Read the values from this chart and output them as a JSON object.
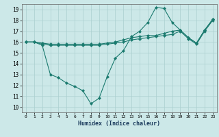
{
  "xlabel": "Humidex (Indice chaleur)",
  "background_color": "#cce8e8",
  "line_color": "#1a7a6e",
  "grid_color": "#aacfcf",
  "xlim": [
    -0.5,
    23.5
  ],
  "ylim": [
    9.5,
    19.5
  ],
  "yticks": [
    10,
    11,
    12,
    13,
    14,
    15,
    16,
    17,
    18,
    19
  ],
  "xticks": [
    0,
    1,
    2,
    3,
    4,
    5,
    6,
    7,
    8,
    9,
    10,
    11,
    12,
    13,
    14,
    15,
    16,
    17,
    18,
    19,
    20,
    21,
    22,
    23
  ],
  "series": [
    {
      "x": [
        0,
        1,
        2,
        3,
        4,
        5,
        6,
        7,
        8,
        9,
        10,
        11,
        12,
        13,
        14,
        15,
        16,
        17,
        18,
        19,
        20,
        21,
        22,
        23
      ],
      "y": [
        16,
        16,
        15.7,
        13.0,
        12.7,
        12.2,
        11.9,
        11.5,
        10.3,
        10.8,
        12.8,
        14.5,
        15.2,
        16.5,
        17.0,
        17.8,
        19.2,
        19.1,
        17.8,
        17.1,
        16.4,
        15.9,
        17.1,
        18.1
      ]
    },
    {
      "x": [
        0,
        1,
        2,
        3,
        4,
        5,
        6,
        7,
        8,
        9,
        10,
        11,
        12,
        13,
        14,
        15,
        16,
        17,
        18,
        19,
        20,
        21,
        22,
        23
      ],
      "y": [
        16,
        16,
        15.9,
        15.8,
        15.8,
        15.8,
        15.8,
        15.8,
        15.8,
        15.8,
        15.9,
        16.0,
        16.2,
        16.4,
        16.5,
        16.6,
        16.6,
        16.8,
        17.0,
        17.1,
        16.4,
        15.9,
        17.1,
        18.1
      ]
    },
    {
      "x": [
        0,
        1,
        2,
        3,
        4,
        5,
        6,
        7,
        8,
        9,
        10,
        11,
        12,
        13,
        14,
        15,
        16,
        17,
        18,
        19,
        20,
        21,
        22,
        23
      ],
      "y": [
        16,
        16,
        15.8,
        15.7,
        15.7,
        15.7,
        15.7,
        15.7,
        15.7,
        15.7,
        15.8,
        15.9,
        16.0,
        16.2,
        16.3,
        16.4,
        16.5,
        16.6,
        16.7,
        17.0,
        16.3,
        15.8,
        17.0,
        18.0
      ]
    }
  ]
}
